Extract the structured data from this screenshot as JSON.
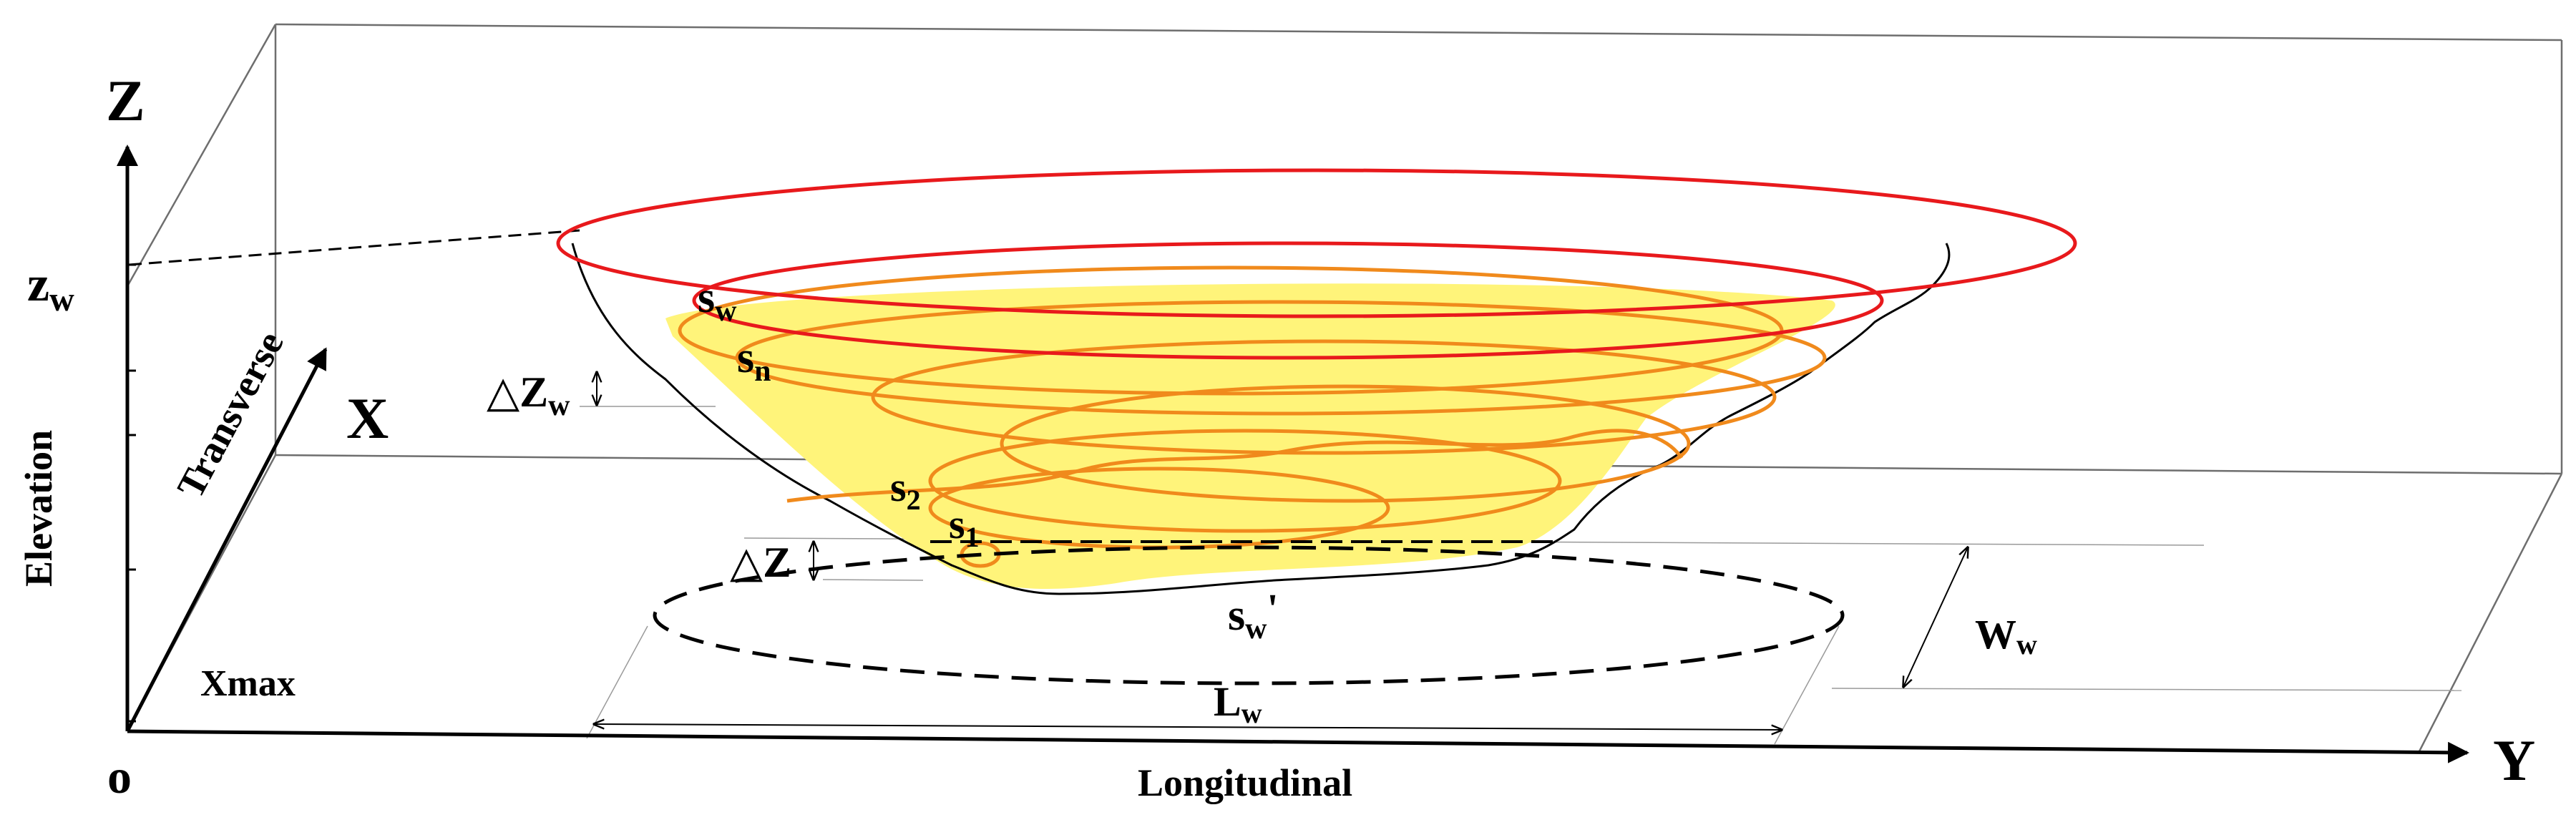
{
  "diagram": {
    "axes": {
      "z_label": "Z",
      "x_label": "X",
      "y_label": "Y",
      "origin_label": "o",
      "z_title": "Elevation",
      "x_title": "Transverse",
      "y_title": "Longitudinal",
      "xmax_label": "Xmax"
    },
    "levels": {
      "zw_base": "z",
      "zw_sub": "w",
      "delta_zw_base": "△Z",
      "delta_zw_sub": "w",
      "delta_z": "△Z"
    },
    "surfaces": {
      "sw_base": "s",
      "sw_sub": "w",
      "sn_base": "s",
      "sn_sub": "n",
      "s2_base": "s",
      "s2_sub": "2",
      "s1_base": "s",
      "s1_sub": "1",
      "sw_prime_base": "s",
      "sw_prime_sub": "w",
      "sw_prime_mark": "'"
    },
    "dimensions": {
      "lw_base": "L",
      "lw_sub": "w",
      "ww_base": "W",
      "ww_sub": "w"
    },
    "colors": {
      "outer_contour": "#e8191c",
      "inner_contours": "#f08a1c",
      "water_fill": "#fff47a",
      "lines": "#000000",
      "guide_lines": "#9a9a9a"
    }
  }
}
